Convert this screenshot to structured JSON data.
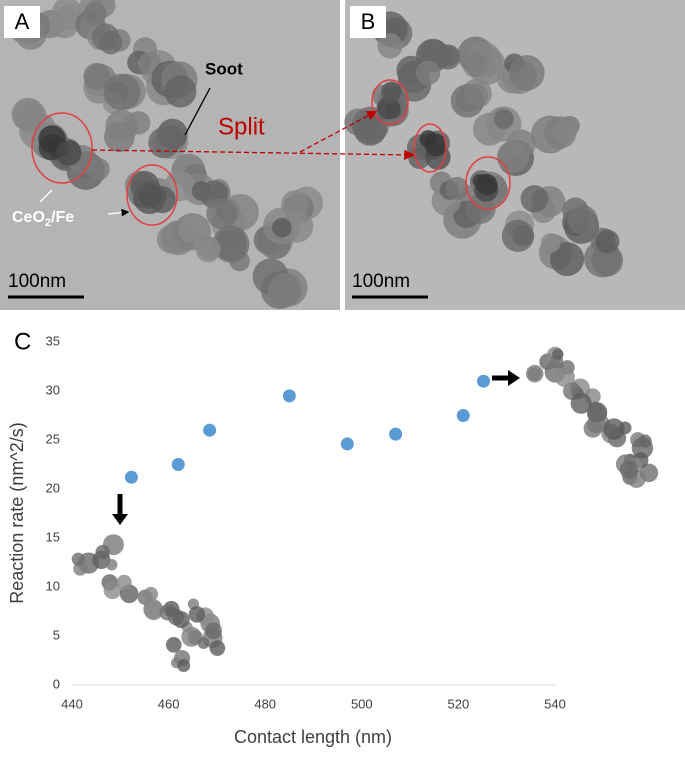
{
  "panels": [
    {
      "label": "A",
      "scale_label": "100nm",
      "soot_label": "Soot",
      "split_label": "Split",
      "catalyst_label": [
        "CeO",
        "2",
        "/Fe"
      ]
    },
    {
      "label": "B",
      "scale_label": "100nm"
    }
  ],
  "chart_data": {
    "type": "scatter",
    "panel_label": "C",
    "x_label": "Contact length (nm)",
    "y_label": "Reaction rate (nm^2/s)",
    "x": [
      452.3,
      462,
      468.5,
      485,
      497,
      507,
      521,
      525.2
    ],
    "values": [
      21.2,
      22.5,
      26,
      29.5,
      24.6,
      25.6,
      27.5,
      31
    ],
    "color": "#5b9bd5",
    "xlim": [
      440,
      540
    ],
    "xticks": [
      440,
      460,
      480,
      500,
      520,
      540
    ],
    "ylim": [
      0,
      35
    ],
    "yticks": [
      0,
      5,
      10,
      15,
      20,
      25,
      30,
      35
    ]
  }
}
